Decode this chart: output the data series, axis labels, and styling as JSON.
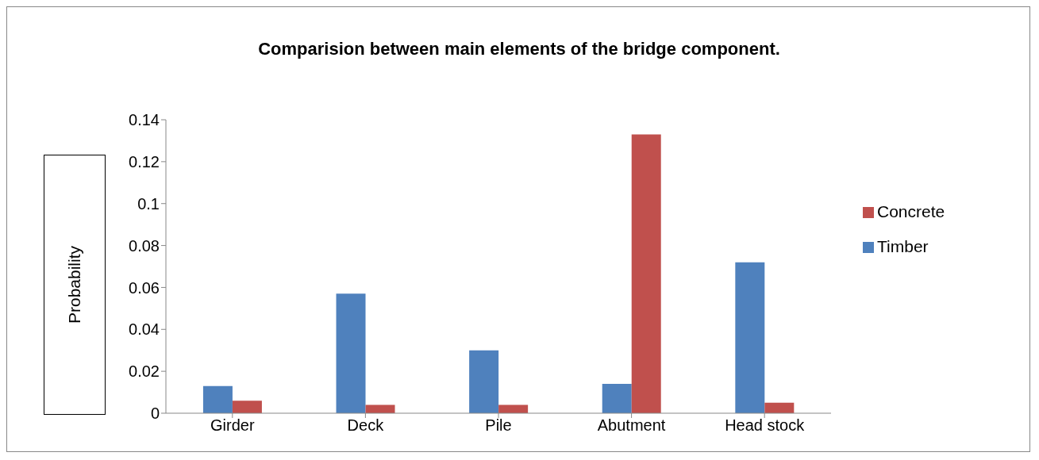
{
  "chart_data": {
    "type": "bar",
    "title": "Comparision between main elements of the bridge component.",
    "ylabel": "Probability",
    "categories": [
      "Girder",
      "Deck",
      "Pile",
      "Abutment",
      "Head stock"
    ],
    "series": [
      {
        "name": "Timber",
        "color": "#4f81bd",
        "values": [
          0.013,
          0.057,
          0.03,
          0.014,
          0.072
        ]
      },
      {
        "name": "Concrete",
        "color": "#c0504d",
        "values": [
          0.006,
          0.004,
          0.004,
          0.133,
          0.005
        ]
      }
    ],
    "ylim": [
      0,
      0.14
    ],
    "yticks": [
      0,
      0.02,
      0.04,
      0.06,
      0.08,
      0.1,
      0.12,
      0.14
    ],
    "grid": false,
    "legend": "right"
  }
}
